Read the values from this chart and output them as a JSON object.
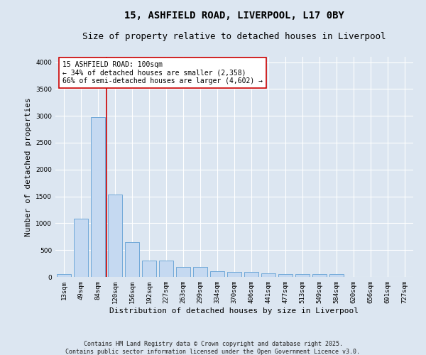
{
  "title_line1": "15, ASHFIELD ROAD, LIVERPOOL, L17 0BY",
  "title_line2": "Size of property relative to detached houses in Liverpool",
  "xlabel": "Distribution of detached houses by size in Liverpool",
  "ylabel": "Number of detached properties",
  "bar_labels": [
    "13sqm",
    "49sqm",
    "84sqm",
    "120sqm",
    "156sqm",
    "192sqm",
    "227sqm",
    "263sqm",
    "299sqm",
    "334sqm",
    "370sqm",
    "406sqm",
    "441sqm",
    "477sqm",
    "513sqm",
    "549sqm",
    "584sqm",
    "620sqm",
    "656sqm",
    "691sqm",
    "727sqm"
  ],
  "bar_values": [
    50,
    1080,
    2970,
    1540,
    650,
    310,
    310,
    185,
    185,
    100,
    90,
    90,
    60,
    50,
    50,
    50,
    50,
    0,
    0,
    0,
    0
  ],
  "bar_color": "#c5d9f1",
  "bar_edge_color": "#6fa8d8",
  "vline_x_index": 2,
  "vline_color": "#cc0000",
  "annotation_text": "15 ASHFIELD ROAD: 100sqm\n← 34% of detached houses are smaller (2,358)\n66% of semi-detached houses are larger (4,602) →",
  "annotation_box_color": "#ffffff",
  "annotation_box_edge": "#cc0000",
  "ylim": [
    0,
    4100
  ],
  "yticks": [
    0,
    500,
    1000,
    1500,
    2000,
    2500,
    3000,
    3500,
    4000
  ],
  "bg_color": "#dce6f1",
  "plot_bg_color": "#dce6f1",
  "footer_line1": "Contains HM Land Registry data © Crown copyright and database right 2025.",
  "footer_line2": "Contains public sector information licensed under the Open Government Licence v3.0.",
  "title_fontsize": 10,
  "subtitle_fontsize": 9,
  "axis_label_fontsize": 8,
  "tick_fontsize": 6.5,
  "annotation_fontsize": 7,
  "footer_fontsize": 6
}
